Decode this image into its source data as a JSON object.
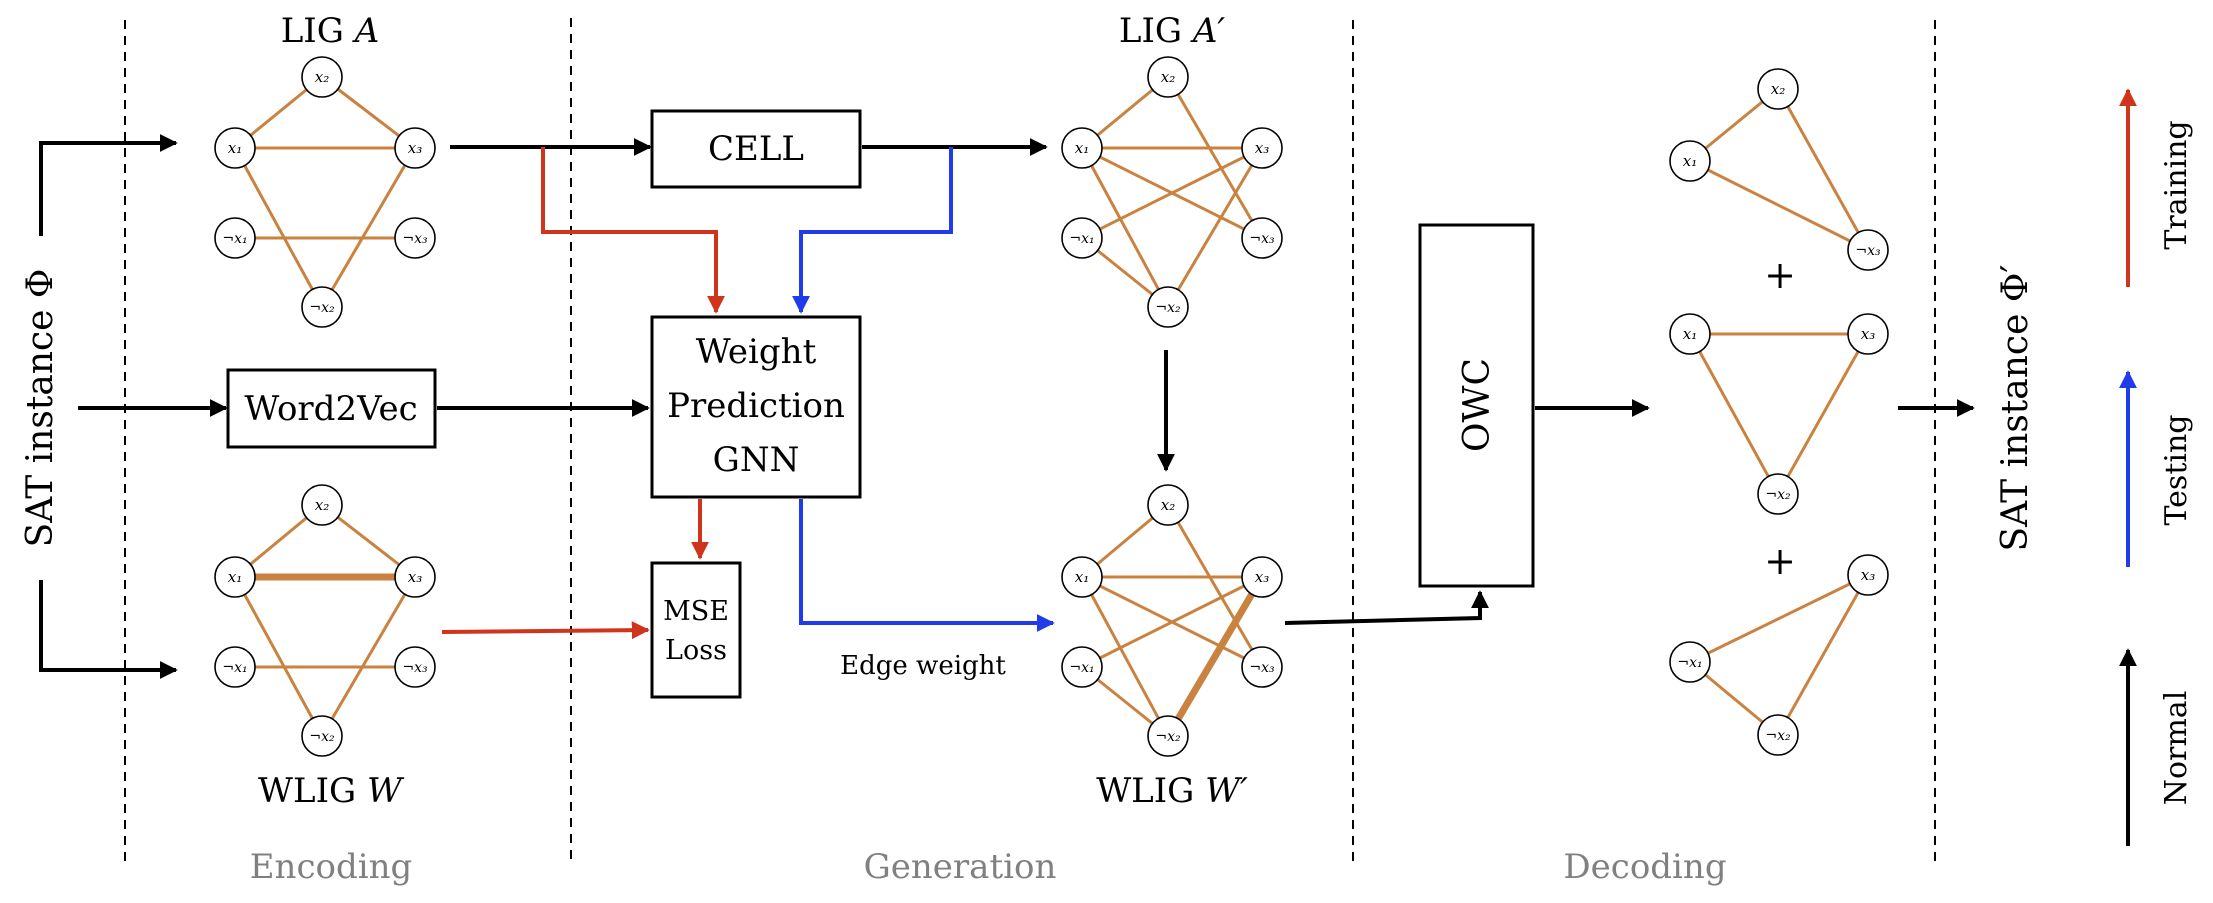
{
  "colors": {
    "normal": "#000000",
    "training": "#d0341c",
    "testing": "#1f3bea",
    "edge": "#c9823f",
    "section_label": "#808080"
  },
  "graphs": {
    "lig_a_title": "LIG",
    "lig_a_symbol": "A",
    "lig_a_prime_title": "LIG",
    "lig_a_prime_symbol": "A′",
    "wlig_w_title": "WLIG",
    "wlig_w_symbol": "W",
    "wlig_w_prime_title": "WLIG",
    "wlig_w_prime_symbol": "W′"
  },
  "nodes": {
    "x1": "x₁",
    "x2": "x₂",
    "x3": "x₃",
    "nx1": "¬x₁",
    "nx2": "¬x₂",
    "nx3": "¬x₃"
  },
  "boxes": {
    "cell": "CELL",
    "word2vec": "Word2Vec",
    "gnn_line1": "Weight",
    "gnn_line2": "Prediction",
    "gnn_line3": "GNN",
    "mse_line1": "MSE",
    "mse_line2": "Loss",
    "owc": "OWC"
  },
  "labels": {
    "input": "SAT instance Φ",
    "output": "SAT instance Φ′",
    "edge_weight": "Edge weight",
    "plus": "+"
  },
  "sections": {
    "encoding": "Encoding",
    "generation": "Generation",
    "decoding": "Decoding"
  },
  "legend": {
    "training": "Training",
    "testing": "Testing",
    "normal": "Normal"
  }
}
